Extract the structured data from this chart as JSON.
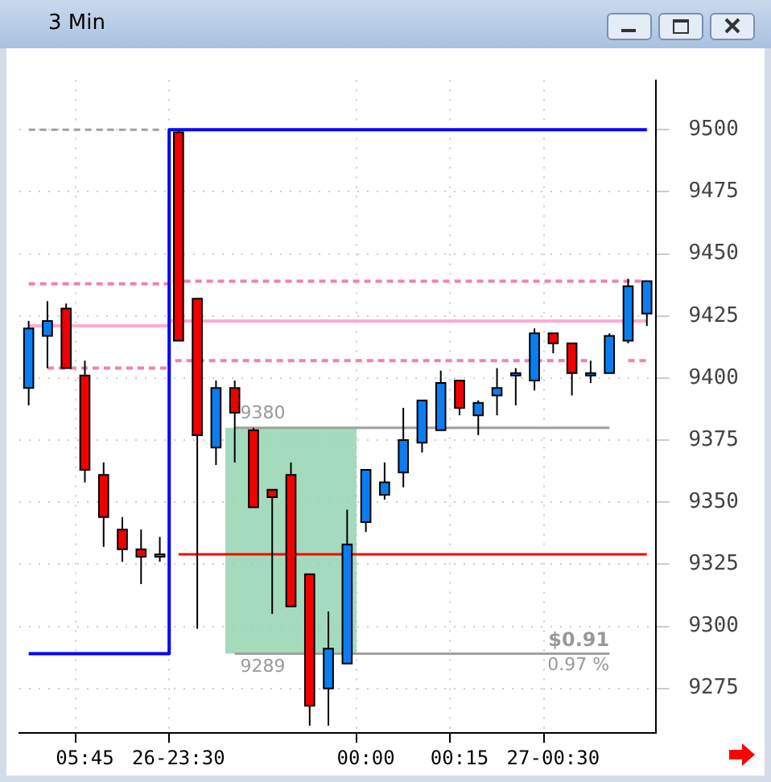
{
  "chart_data": {
    "type": "candlestick",
    "title": "3 Min",
    "categories": [
      null,
      null,
      null,
      "05:45",
      null,
      null,
      null,
      null,
      "26-23:30",
      null,
      null,
      null,
      null,
      null,
      null,
      null,
      null,
      null,
      "00:00",
      null,
      null,
      null,
      null,
      "00:15",
      null,
      null,
      null,
      null,
      "27-00:30",
      null,
      null,
      null,
      null,
      null
    ],
    "ohlc": [
      [
        9396,
        9423,
        9389,
        9420
      ],
      [
        9417,
        9431,
        9404,
        9423
      ],
      [
        9428,
        9430,
        9404,
        9404
      ],
      [
        9401,
        9407,
        9358,
        9363
      ],
      [
        9361,
        9366,
        9332,
        9344
      ],
      [
        9339,
        9344,
        9326,
        9331
      ],
      [
        9331,
        9339,
        9317,
        9328
      ],
      [
        9328,
        9336,
        9326,
        9329
      ],
      [
        9499,
        9500,
        9415,
        9415
      ],
      [
        9432,
        9432,
        9299,
        9377
      ],
      [
        9372,
        9399,
        9365,
        9396
      ],
      [
        9396,
        9399,
        9366,
        9386
      ],
      [
        9379,
        9380,
        9348,
        9348
      ],
      [
        9355,
        9355,
        9305,
        9352
      ],
      [
        9361,
        9366,
        9308,
        9308
      ],
      [
        9321,
        9321,
        9260,
        9268
      ],
      [
        9275,
        9306,
        9260,
        9291
      ],
      [
        9285,
        9347,
        9285,
        9333
      ],
      [
        9342,
        9363,
        9338,
        9363
      ],
      [
        9353,
        9366,
        9351,
        9358
      ],
      [
        9362,
        9388,
        9356,
        9375
      ],
      [
        9374,
        9391,
        9370,
        9391
      ],
      [
        9379,
        9403,
        9379,
        9398
      ],
      [
        9399,
        9399,
        9385,
        9388
      ],
      [
        9385,
        9391,
        9377,
        9390
      ],
      [
        9393,
        9404,
        9385,
        9396
      ],
      [
        9401,
        9404,
        9389,
        9402
      ],
      [
        9399,
        9420,
        9395,
        9418
      ],
      [
        9418,
        9418,
        9410,
        9414
      ],
      [
        9414,
        9414,
        9393,
        9402
      ],
      [
        9402,
        9407,
        9398,
        9402
      ],
      [
        9402,
        9418,
        9402,
        9417
      ],
      [
        9415,
        9440,
        9414,
        9437
      ],
      [
        9426,
        9439,
        9421,
        9439
      ]
    ],
    "colors": [
      "#0a7ef0",
      "#0a7ef0",
      "#f00000",
      "#f00000",
      "#f00000",
      "#f00000",
      "#f00000",
      "#0a7ef0",
      "#f00000",
      "#f00000",
      "#0a7ef0",
      "#f00000",
      "#f00000",
      "#f00000",
      "#f00000",
      "#f00000",
      "#0a7ef0",
      "#0a7ef0",
      "#0a7ef0",
      "#0a7ef0",
      "#0a7ef0",
      "#0a7ef0",
      "#0a7ef0",
      "#f00000",
      "#0a7ef0",
      "#0a7ef0",
      "#0a7ef0",
      "#0a7ef0",
      "#f00000",
      "#f00000",
      "#0a7ef0",
      "#0a7ef0",
      "#0a7ef0",
      "#0a7ef0"
    ],
    "series": [
      {
        "type": "step",
        "color": "#0000ff",
        "values": [
          9289,
          9289,
          9289,
          9289,
          9289,
          9289,
          9289,
          9289,
          9500,
          9500,
          9500,
          9500,
          9500,
          9500,
          9500,
          9500,
          9500,
          9500,
          9500,
          9500,
          9500,
          9500,
          9500,
          9500,
          9500,
          9500,
          9500,
          9500,
          9500,
          9500,
          9500,
          9500,
          9500,
          9500
        ]
      },
      {
        "type": "step",
        "color": "#ffaad4",
        "values": [
          9421,
          9421,
          9421,
          9421,
          9421,
          9421,
          9421,
          9421,
          9423,
          9423,
          9423,
          9423,
          9423,
          9423,
          9423,
          9423,
          9423,
          9423,
          9423,
          9423,
          9423,
          9423,
          9423,
          9423,
          9423,
          9423,
          9423,
          9423,
          9423,
          9423,
          9423,
          9423,
          9423,
          9423
        ]
      },
      {
        "type": "step",
        "color": "#f080b8",
        "line_style": "dashed",
        "values": [
          9438,
          9438,
          9438,
          9438,
          9438,
          9438,
          9438,
          9438,
          9439,
          9439,
          9439,
          9439,
          9439,
          9439,
          9439,
          9439,
          9439,
          9439,
          9439,
          9439,
          9439,
          9439,
          9439,
          9439,
          9439,
          9439,
          9439,
          9439,
          9439,
          9439,
          9439,
          9439,
          9439,
          9439
        ]
      },
      {
        "type": "step",
        "color": "#f080b8",
        "line_style": "dashed",
        "values": [
          null,
          9404,
          9404,
          9404,
          9404,
          9404,
          9404,
          9404,
          9407,
          9407,
          9407,
          9407,
          9407,
          9407,
          9407,
          9407,
          9407,
          9407,
          9407,
          9407,
          9407,
          9407,
          9407,
          9407,
          9407,
          9407,
          9407,
          9407,
          9407,
          9407,
          9407,
          null,
          9407,
          9407
        ]
      },
      {
        "type": "line",
        "color": "#a0a0a0",
        "line_style": "dashed",
        "values": [
          9500,
          9500,
          9500,
          9500,
          9500,
          9500,
          9500,
          9500,
          null,
          null,
          null,
          null,
          null,
          null,
          null,
          null,
          null,
          null,
          null,
          null,
          null,
          null,
          null,
          null,
          null,
          null,
          null,
          null,
          null,
          null,
          null,
          null,
          null,
          null
        ]
      },
      {
        "type": "line",
        "color": "#ff0000",
        "values": [
          null,
          null,
          null,
          null,
          null,
          null,
          null,
          null,
          9329,
          9329,
          9329,
          9329,
          9329,
          9329,
          9329,
          9329,
          9329,
          9329,
          9329,
          9329,
          9329,
          9329,
          9329,
          9329,
          9329,
          9329,
          9329,
          9329,
          9329,
          9329,
          9329,
          9329,
          9329,
          9329
        ]
      },
      {
        "type": "line",
        "color": "#a0a0a0",
        "values": [
          null,
          null,
          null,
          null,
          null,
          null,
          null,
          null,
          null,
          null,
          null,
          9380,
          9380,
          9380,
          9380,
          9380,
          9380,
          9380,
          9380,
          9380,
          9380,
          9380,
          9380,
          9380,
          9380,
          9380,
          9380,
          9380,
          9380,
          9380,
          9380,
          9380,
          null,
          null
        ]
      },
      {
        "type": "line",
        "color": "#a0a0a0",
        "values": [
          null,
          null,
          null,
          null,
          null,
          null,
          null,
          null,
          null,
          null,
          null,
          9289,
          9289,
          9289,
          9289,
          9289,
          9289,
          9289,
          9289,
          9289,
          9289,
          9289,
          9289,
          9289,
          9289,
          9289,
          9289,
          9289,
          9289,
          9289,
          9289,
          9289,
          null,
          null
        ]
      }
    ],
    "bands": [
      {
        "axis": "y",
        "from": 9289,
        "to": 9380,
        "color": "#8fd3ad"
      }
    ],
    "annotations": [
      "9380",
      "9289",
      "$0.91",
      "0.97 %"
    ],
    "ylim": [
      9257,
      9520
    ],
    "yticks": [
      9275,
      9300,
      9325,
      9350,
      9375,
      9400,
      9425,
      9450,
      9475,
      9500
    ],
    "grid": true,
    "legend": false
  }
}
